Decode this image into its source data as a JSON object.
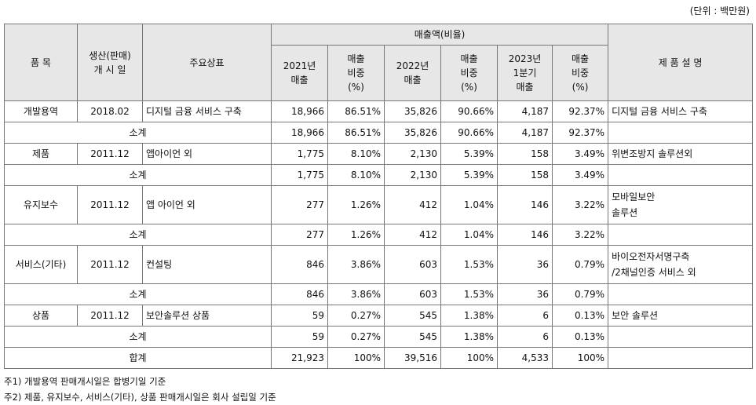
{
  "unit_label": "(단위 : 백만원)",
  "header": {
    "item": "품 목",
    "start": "생산(판매)\n개 시 일",
    "brand": "주요상표",
    "sales_group": "매출액(비율)",
    "y2021": "2021년\n매출",
    "ratio1": "매출\n비중\n(%)",
    "y2022": "2022년\n매출",
    "ratio2": "매출\n비중\n(%)",
    "q2023": "2023년\n1분기\n매출",
    "ratio3": "매출\n비중\n(%)",
    "desc": "제 품 설 명"
  },
  "rows": [
    {
      "item": "개발용역",
      "start": "2018.02",
      "brand": "디지털 금융 서비스 구축",
      "s2021": "18,966",
      "r2021": "86.51%",
      "s2022": "35,826",
      "r2022": "90.66%",
      "s2023": "4,187",
      "r2023": "92.37%",
      "desc": "디지털 금융 서비스 구축"
    },
    {
      "label": "소계",
      "s2021": "18,966",
      "r2021": "86.51%",
      "s2022": "35,826",
      "r2022": "90.66%",
      "s2023": "4,187",
      "r2023": "92.37%"
    },
    {
      "item": "제품",
      "start": "2011.12",
      "brand": "앱아이언 외",
      "s2021": "1,775",
      "r2021": "8.10%",
      "s2022": "2,130",
      "r2022": "5.39%",
      "s2023": "158",
      "r2023": "3.49%",
      "desc": "위변조방지 솔루션외"
    },
    {
      "label": "소계",
      "s2021": "1,775",
      "r2021": "8.10%",
      "s2022": "2,130",
      "r2022": "5.39%",
      "s2023": "158",
      "r2023": "3.49%"
    },
    {
      "item": "유지보수",
      "start": "2011.12",
      "brand": "앱 아이언 외",
      "s2021": "277",
      "r2021": "1.26%",
      "s2022": "412",
      "r2022": "1.04%",
      "s2023": "146",
      "r2023": "3.22%",
      "desc": "모바일보안\n솔루션"
    },
    {
      "label": "소계",
      "s2021": "277",
      "r2021": "1.26%",
      "s2022": "412",
      "r2022": "1.04%",
      "s2023": "146",
      "r2023": "3.22%"
    },
    {
      "item": "서비스(기타)",
      "start": "2011.12",
      "brand": "컨설팅",
      "s2021": "846",
      "r2021": "3.86%",
      "s2022": "603",
      "r2022": "1.53%",
      "s2023": "36",
      "r2023": "0.79%",
      "desc": "바이오전자서명구축\n/2채널인증 서비스 외"
    },
    {
      "label": "소계",
      "s2021": "846",
      "r2021": "3.86%",
      "s2022": "603",
      "r2022": "1.53%",
      "s2023": "36",
      "r2023": "0.79%"
    },
    {
      "item": "상품",
      "start": "2011.12",
      "brand": "보안솔루션 상품",
      "s2021": "59",
      "r2021": "0.27%",
      "s2022": "545",
      "r2022": "1.38%",
      "s2023": "6",
      "r2023": "0.13%",
      "desc": "보안 솔루션"
    },
    {
      "label": "소계",
      "s2021": "59",
      "r2021": "0.27%",
      "s2022": "545",
      "r2022": "1.38%",
      "s2023": "6",
      "r2023": "0.13%"
    },
    {
      "label": "합계",
      "s2021": "21,923",
      "r2021": "100%",
      "s2022": "39,516",
      "r2022": "100%",
      "s2023": "4,533",
      "r2023": "100%"
    }
  ],
  "notes": [
    "주1) 개발용역 판매개시일은 합병기일 기준",
    "주2) 제품, 유지보수, 서비스(기타), 상품 판매개시일은 회사 설립일 기준"
  ]
}
